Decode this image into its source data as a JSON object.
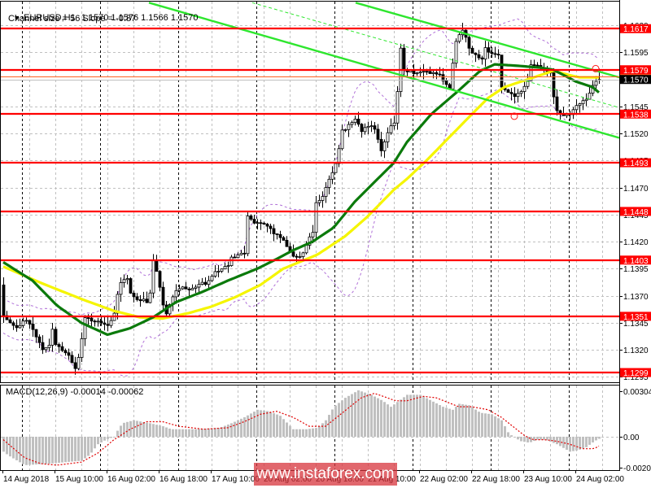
{
  "header": {
    "collapse_icon": "▼",
    "symbol_timeframe": "EURUSD,H1",
    "ohlc": "1.1570 1.1576 1.1566 1.1570",
    "indicator_text": "Channel size = 56 Slope = -0.87"
  },
  "macd_pane": {
    "label": "MACD(12,26,9) -0.00014 -0.00062"
  },
  "watermark": {
    "text": "www.instaforex.com"
  },
  "colors": {
    "background": "#ffffff",
    "grid": "#c0c0c0",
    "separator": "#000000",
    "level": "#ff0000",
    "channel": "#2ee62e",
    "ma_fast": "#0b7a0b",
    "ma_slow": "#f5f500",
    "bands": "#b070d8",
    "bull_body": "#ffffff",
    "bear_body": "#000000",
    "candle_outline": "#000000",
    "macd_histogram": "#c0c0c0",
    "macd_signal": "#e00000",
    "bid_line": "#c0c0c0",
    "ask_line": "#ff6020",
    "current_price_box": "#000000",
    "fractal_marker": "#ff2020"
  },
  "chart_data": {
    "type": "candlestick",
    "title": "EURUSD,H1",
    "symbol": "EURUSD",
    "timeframe": "H1",
    "last_bar": {
      "open": 1.157,
      "high": 1.1576,
      "low": 1.1566,
      "close": 1.157
    },
    "ylim": [
      1.129,
      1.1642
    ],
    "price_ticks": [
      "1.1620",
      "1.1595",
      "1.1570",
      "1.1545",
      "1.1520",
      "1.1495",
      "1.1470",
      "1.1445",
      "1.1420",
      "1.1395",
      "1.1370",
      "1.1345",
      "1.1320",
      "1.1295"
    ],
    "levels": [
      "1.1617",
      "1.1579",
      "1.1538",
      "1.1493",
      "1.1448",
      "1.1403",
      "1.1351",
      "1.1299"
    ],
    "current_price": "1.1570",
    "ask_price": 1.1573,
    "bar_count": 184,
    "first_open": 1.138,
    "time_labels": [
      {
        "bar": 0,
        "text": "14 Aug 2018"
      },
      {
        "bar": 16,
        "text": "15 Aug 10:00"
      },
      {
        "bar": 32,
        "text": "16 Aug 02:00"
      },
      {
        "bar": 48,
        "text": "16 Aug 18:00"
      },
      {
        "bar": 64,
        "text": "17 Aug 10:00"
      },
      {
        "bar": 80,
        "text": "20 Aug 02:00"
      },
      {
        "bar": 96,
        "text": "20 Aug 18:00"
      },
      {
        "bar": 112,
        "text": "21 Aug 10:00"
      },
      {
        "bar": 128,
        "text": "22 Aug 02:00"
      },
      {
        "bar": 144,
        "text": "22 Aug 18:00"
      },
      {
        "bar": 160,
        "text": "23 Aug 10:00"
      },
      {
        "bar": 176,
        "text": "24 Aug 02:00"
      }
    ],
    "day_separator_bars": [
      6,
      30,
      54,
      78,
      102,
      126,
      150,
      174
    ],
    "close_path": [
      [
        0,
        1.1352
      ],
      [
        2,
        1.1344
      ],
      [
        4,
        1.1341
      ],
      [
        7,
        1.1348
      ],
      [
        9,
        1.1338
      ],
      [
        11,
        1.1326
      ],
      [
        12,
        1.132
      ],
      [
        14,
        1.1323
      ],
      [
        15,
        1.1338
      ],
      [
        16,
        1.1326
      ],
      [
        18,
        1.132
      ],
      [
        20,
        1.1316
      ],
      [
        22,
        1.1303
      ],
      [
        23,
        1.1312
      ],
      [
        24,
        1.133
      ],
      [
        25,
        1.1349
      ],
      [
        27,
        1.1347
      ],
      [
        30,
        1.1345
      ],
      [
        32,
        1.1341
      ],
      [
        34,
        1.1355
      ],
      [
        35,
        1.1372
      ],
      [
        36,
        1.1383
      ],
      [
        38,
        1.1385
      ],
      [
        39,
        1.1373
      ],
      [
        40,
        1.1368
      ],
      [
        42,
        1.1366
      ],
      [
        44,
        1.1365
      ],
      [
        45,
        1.1372
      ],
      [
        46,
        1.1402
      ],
      [
        47,
        1.1392
      ],
      [
        49,
        1.1362
      ],
      [
        50,
        1.1352
      ],
      [
        51,
        1.1362
      ],
      [
        52,
        1.137
      ],
      [
        54,
        1.1377
      ],
      [
        57,
        1.1376
      ],
      [
        60,
        1.138
      ],
      [
        62,
        1.1382
      ],
      [
        65,
        1.1392
      ],
      [
        69,
        1.1399
      ],
      [
        70,
        1.1405
      ],
      [
        72,
        1.1408
      ],
      [
        74,
        1.141
      ],
      [
        75,
        1.1443
      ],
      [
        76,
        1.144
      ],
      [
        78,
        1.1437
      ],
      [
        80,
        1.1436
      ],
      [
        82,
        1.1431
      ],
      [
        85,
        1.1424
      ],
      [
        87,
        1.1416
      ],
      [
        89,
        1.1408
      ],
      [
        90,
        1.1405
      ],
      [
        92,
        1.141
      ],
      [
        93,
        1.1418
      ],
      [
        95,
        1.1428
      ],
      [
        96,
        1.1455
      ],
      [
        98,
        1.1462
      ],
      [
        100,
        1.1478
      ],
      [
        102,
        1.1492
      ],
      [
        104,
        1.1522
      ],
      [
        106,
        1.1528
      ],
      [
        108,
        1.1533
      ],
      [
        110,
        1.1522
      ],
      [
        112,
        1.1528
      ],
      [
        114,
        1.1525
      ],
      [
        116,
        1.1505
      ],
      [
        117,
        1.1512
      ],
      [
        119,
        1.1527
      ],
      [
        120,
        1.153
      ],
      [
        121,
        1.156
      ],
      [
        122,
        1.1598
      ],
      [
        123,
        1.158
      ],
      [
        124,
        1.1577
      ],
      [
        130,
        1.1576
      ],
      [
        134,
        1.1575
      ],
      [
        136,
        1.1565
      ],
      [
        137,
        1.1562
      ],
      [
        138,
        1.1586
      ],
      [
        139,
        1.1604
      ],
      [
        140,
        1.1612
      ],
      [
        141,
        1.1616
      ],
      [
        142,
        1.1608
      ],
      [
        143,
        1.1598
      ],
      [
        145,
        1.1592
      ],
      [
        147,
        1.159
      ],
      [
        148,
        1.1598
      ],
      [
        150,
        1.1595
      ],
      [
        152,
        1.1592
      ],
      [
        153,
        1.1564
      ],
      [
        155,
        1.1558
      ],
      [
        157,
        1.1554
      ],
      [
        159,
        1.156
      ],
      [
        161,
        1.1568
      ],
      [
        162,
        1.1585
      ],
      [
        164,
        1.1583
      ],
      [
        166,
        1.158
      ],
      [
        168,
        1.1575
      ],
      [
        169,
        1.1555
      ],
      [
        170,
        1.1542
      ],
      [
        171,
        1.1537
      ],
      [
        174,
        1.1538
      ],
      [
        176,
        1.1545
      ],
      [
        178,
        1.155
      ],
      [
        179,
        1.1553
      ],
      [
        180,
        1.1558
      ],
      [
        181,
        1.1566
      ],
      [
        183,
        1.157
      ]
    ],
    "ma_fast": {
      "color_key": "ma_fast",
      "points": [
        [
          0,
          1.1401
        ],
        [
          9,
          1.1384
        ],
        [
          16.5,
          1.1361
        ],
        [
          24,
          1.1345
        ],
        [
          32,
          1.1334
        ],
        [
          39,
          1.134
        ],
        [
          46,
          1.135
        ],
        [
          53,
          1.1364
        ],
        [
          61.5,
          1.1374
        ],
        [
          69,
          1.1384
        ],
        [
          78,
          1.1395
        ],
        [
          84,
          1.1404
        ],
        [
          89,
          1.1412
        ],
        [
          95,
          1.142
        ],
        [
          101.5,
          1.1433
        ],
        [
          108,
          1.1457
        ],
        [
          115,
          1.1478
        ],
        [
          120,
          1.1493
        ],
        [
          124,
          1.1512
        ],
        [
          131.5,
          1.1538
        ],
        [
          140,
          1.156
        ],
        [
          146.5,
          1.1578
        ],
        [
          151,
          1.1584
        ],
        [
          156.5,
          1.1583
        ],
        [
          165,
          1.1581
        ],
        [
          169,
          1.1579
        ],
        [
          176,
          1.1568
        ],
        [
          181,
          1.1563
        ],
        [
          183,
          1.1558
        ]
      ]
    },
    "ma_slow": {
      "color_key": "ma_slow",
      "points": [
        [
          0,
          1.1397
        ],
        [
          11.5,
          1.1382
        ],
        [
          24,
          1.1367
        ],
        [
          34,
          1.1356
        ],
        [
          42,
          1.135
        ],
        [
          49,
          1.1349
        ],
        [
          57,
          1.1354
        ],
        [
          64,
          1.136
        ],
        [
          71.5,
          1.1369
        ],
        [
          79,
          1.138
        ],
        [
          86,
          1.1395
        ],
        [
          96.5,
          1.1408
        ],
        [
          105,
          1.1425
        ],
        [
          111.5,
          1.1442
        ],
        [
          120,
          1.1468
        ],
        [
          124,
          1.1478
        ],
        [
          130,
          1.1495
        ],
        [
          136.5,
          1.1515
        ],
        [
          144,
          1.1538
        ],
        [
          149,
          1.1553
        ],
        [
          154,
          1.1563
        ],
        [
          161,
          1.157
        ],
        [
          166,
          1.1575
        ],
        [
          169,
          1.1578
        ],
        [
          174,
          1.1574
        ],
        [
          177,
          1.1572
        ],
        [
          183,
          1.1572
        ]
      ]
    },
    "bollinger": {
      "period": 20,
      "deviation": 2
    },
    "channel": {
      "size": 56,
      "slope": -0.87,
      "upper": [
        [
          108.25,
          1.1641
        ],
        [
          189.25,
          1.1572
        ]
      ],
      "middle": [
        [
          76.5,
          1.1641
        ],
        [
          189.25,
          1.1544
        ]
      ],
      "lower": [
        [
          44.75,
          1.1641
        ],
        [
          189.25,
          1.1516
        ]
      ]
    },
    "fractal_markers": [
      [
        182,
        1.158
      ],
      [
        157,
        1.1536
      ]
    ],
    "macd": {
      "params": "12,26,9",
      "main_value": -0.00014,
      "signal_value": -0.00062,
      "ylim": [
        -0.00223,
        0.00342
      ],
      "axis_labels": [
        {
          "value": 0.00304,
          "text": "0.00304"
        },
        {
          "value": 0,
          "text": "0.00"
        },
        {
          "value": -0.00205,
          "text": "-0.00205"
        }
      ],
      "histogram": [
        [
          0,
          -0.001
        ],
        [
          1.5,
          -0.00125
        ],
        [
          6.5,
          -0.0019
        ],
        [
          14,
          -0.0018
        ],
        [
          24,
          -0.0016
        ],
        [
          26.5,
          -0.0012
        ],
        [
          29,
          -0.0005
        ],
        [
          31.5,
          -0.0002
        ],
        [
          34,
          0.0
        ],
        [
          35,
          0.0004
        ],
        [
          36.5,
          0.0009
        ],
        [
          40,
          0.0011
        ],
        [
          45,
          0.0009
        ],
        [
          49,
          0.0007
        ],
        [
          51.5,
          0.0005
        ],
        [
          59,
          0.0005
        ],
        [
          66.5,
          0.0006
        ],
        [
          70,
          0.0009
        ],
        [
          74,
          0.0013
        ],
        [
          78,
          0.0018
        ],
        [
          81.5,
          0.0017
        ],
        [
          85,
          0.0014
        ],
        [
          89,
          0.0005
        ],
        [
          93,
          0.0005
        ],
        [
          96.5,
          0.0006
        ],
        [
          99,
          0.0011
        ],
        [
          101.5,
          0.002
        ],
        [
          105,
          0.0026
        ],
        [
          109,
          0.0031
        ],
        [
          113,
          0.0028
        ],
        [
          116.5,
          0.0024
        ],
        [
          119,
          0.002
        ],
        [
          121.5,
          0.0024
        ],
        [
          124,
          0.0028
        ],
        [
          128,
          0.0028
        ],
        [
          131.5,
          0.0024
        ],
        [
          135,
          0.002
        ],
        [
          138,
          0.0018
        ],
        [
          140,
          0.0022
        ],
        [
          143,
          0.0021
        ],
        [
          146.5,
          0.0016
        ],
        [
          150,
          0.0015
        ],
        [
          153,
          0.0011
        ],
        [
          155,
          0.0003
        ],
        [
          156.5,
          0.0
        ],
        [
          159,
          -0.0003
        ],
        [
          161.5,
          -0.0004
        ],
        [
          164,
          -0.0002
        ],
        [
          166.5,
          -0.0002
        ],
        [
          170,
          -0.0005
        ],
        [
          174,
          -0.001
        ],
        [
          176.5,
          -0.0009
        ],
        [
          179,
          -0.0007
        ],
        [
          181.5,
          -0.0003
        ],
        [
          183,
          -0.00014
        ]
      ],
      "signal_line": [
        [
          0,
          -0.0002
        ],
        [
          6.5,
          -0.0014
        ],
        [
          11.5,
          -0.0018
        ],
        [
          16.5,
          -0.0019
        ],
        [
          24,
          -0.0017
        ],
        [
          29,
          -0.0011
        ],
        [
          34,
          -0.0002
        ],
        [
          39,
          0.0005
        ],
        [
          44,
          0.001
        ],
        [
          49,
          0.001
        ],
        [
          54,
          0.0007
        ],
        [
          61.5,
          0.0005
        ],
        [
          69,
          0.0006
        ],
        [
          74,
          0.001
        ],
        [
          79,
          0.0015
        ],
        [
          84,
          0.0017
        ],
        [
          89,
          0.0013
        ],
        [
          94,
          0.0007
        ],
        [
          99,
          0.0007
        ],
        [
          102.5,
          0.0013
        ],
        [
          106.5,
          0.002
        ],
        [
          110,
          0.0026
        ],
        [
          114,
          0.0029
        ],
        [
          118,
          0.0026
        ],
        [
          120.5,
          0.0024
        ],
        [
          124,
          0.0024
        ],
        [
          129,
          0.0027
        ],
        [
          133,
          0.0026
        ],
        [
          136.5,
          0.0023
        ],
        [
          140,
          0.002
        ],
        [
          144,
          0.002
        ],
        [
          149,
          0.0018
        ],
        [
          153,
          0.0013
        ],
        [
          156.5,
          0.0007
        ],
        [
          160,
          0.0001
        ],
        [
          162.5,
          -0.0002
        ],
        [
          166.5,
          -0.0002
        ],
        [
          170,
          -0.0003
        ],
        [
          174,
          -0.0005
        ],
        [
          178,
          -0.0008
        ],
        [
          181.5,
          -0.0008
        ],
        [
          183,
          -0.00062
        ]
      ]
    }
  }
}
